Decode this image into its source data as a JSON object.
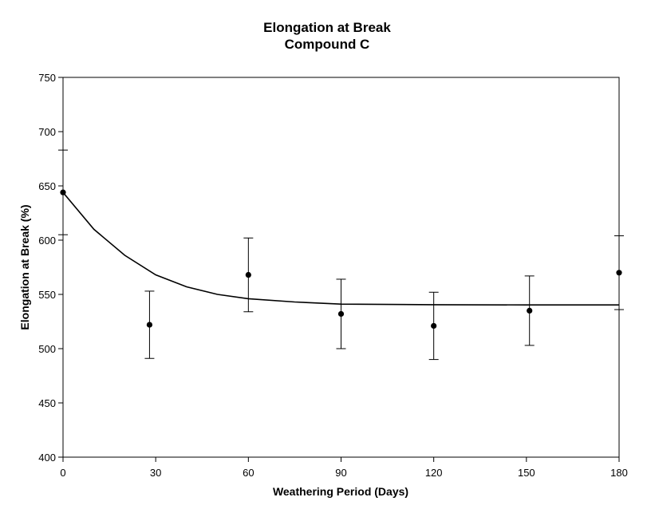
{
  "chart_data": {
    "type": "scatter",
    "title": "Elongation at Break",
    "subtitle": "Compound C",
    "xlabel": "Weathering Period (Days)",
    "ylabel": "Elongation at Break (%)",
    "xlim": [
      0,
      180
    ],
    "ylim": [
      400,
      750
    ],
    "xticks": [
      0,
      30,
      60,
      90,
      120,
      150,
      180
    ],
    "yticks": [
      400,
      450,
      500,
      550,
      600,
      650,
      700,
      750
    ],
    "grid": false,
    "series": [
      {
        "points": [
          {
            "x": 0,
            "y": 644,
            "err_low": 605,
            "err_high": 683
          },
          {
            "x": 28,
            "y": 522,
            "err_low": 491,
            "err_high": 553
          },
          {
            "x": 60,
            "y": 568,
            "err_low": 534,
            "err_high": 602
          },
          {
            "x": 90,
            "y": 532,
            "err_low": 500,
            "err_high": 564
          },
          {
            "x": 120,
            "y": 521,
            "err_low": 490,
            "err_high": 552
          },
          {
            "x": 151,
            "y": 535,
            "err_low": 503,
            "err_high": 567
          },
          {
            "x": 180,
            "y": 570,
            "err_low": 536,
            "err_high": 604
          }
        ]
      }
    ],
    "trendline": {
      "type": "exponential-decay",
      "points": [
        [
          0,
          644
        ],
        [
          10,
          610
        ],
        [
          20,
          586
        ],
        [
          30,
          568
        ],
        [
          40,
          557
        ],
        [
          50,
          550
        ],
        [
          60,
          546
        ],
        [
          75,
          543
        ],
        [
          90,
          541
        ],
        [
          120,
          540.5
        ],
        [
          150,
          540.3
        ],
        [
          180,
          540.3
        ]
      ]
    }
  }
}
